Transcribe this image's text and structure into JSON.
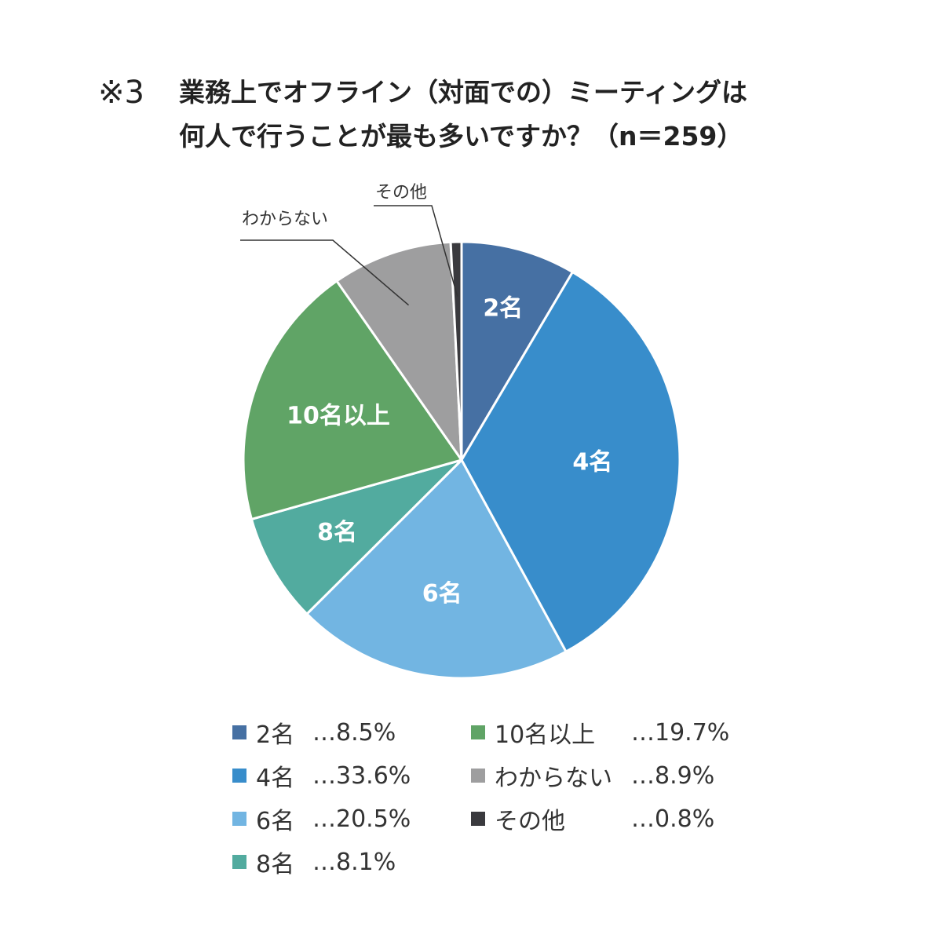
{
  "title": {
    "mark": "※3",
    "line1": "業務上でオフライン（対面での）ミーティングは",
    "line2": "何人で行うことが最も多いですか？（n＝259）"
  },
  "chart_data": {
    "type": "pie",
    "title": "業務上でオフライン（対面での）ミーティングは何人で行うことが最も多いですか？（n＝259）",
    "start_angle_deg": 0,
    "direction": "clockwise",
    "slices": [
      {
        "label": "2名",
        "value": 8.5,
        "color": "#4670a3",
        "inside_label": true
      },
      {
        "label": "4名",
        "value": 33.6,
        "color": "#388dcb",
        "inside_label": true
      },
      {
        "label": "6名",
        "value": 20.5,
        "color": "#72b5e2",
        "inside_label": true
      },
      {
        "label": "8名",
        "value": 8.1,
        "color": "#52ab9f",
        "inside_label": true
      },
      {
        "label": "10名以上",
        "value": 19.7,
        "color": "#60a466",
        "inside_label": true
      },
      {
        "label": "わからない",
        "value": 8.9,
        "color": "#9e9e9f",
        "inside_label": false
      },
      {
        "label": "その他",
        "value": 0.8,
        "color": "#3a3a3e",
        "inside_label": false
      }
    ],
    "legend": {
      "placement": "bottom",
      "items": [
        {
          "label": "2名",
          "value_text": "…8.5%",
          "color": "#4670a3"
        },
        {
          "label": "4名",
          "value_text": "…33.6%",
          "color": "#388dcb"
        },
        {
          "label": "6名",
          "value_text": "…20.5%",
          "color": "#72b5e2"
        },
        {
          "label": "8名",
          "value_text": "…8.1%",
          "color": "#52ab9f"
        },
        {
          "label": "10名以上",
          "value_text": "…19.7%",
          "color": "#60a466"
        },
        {
          "label": "わからない",
          "value_text": "…8.9%",
          "color": "#9e9e9f"
        },
        {
          "label": "その他",
          "value_text": "…0.8%",
          "color": "#3a3a3e"
        }
      ]
    }
  }
}
